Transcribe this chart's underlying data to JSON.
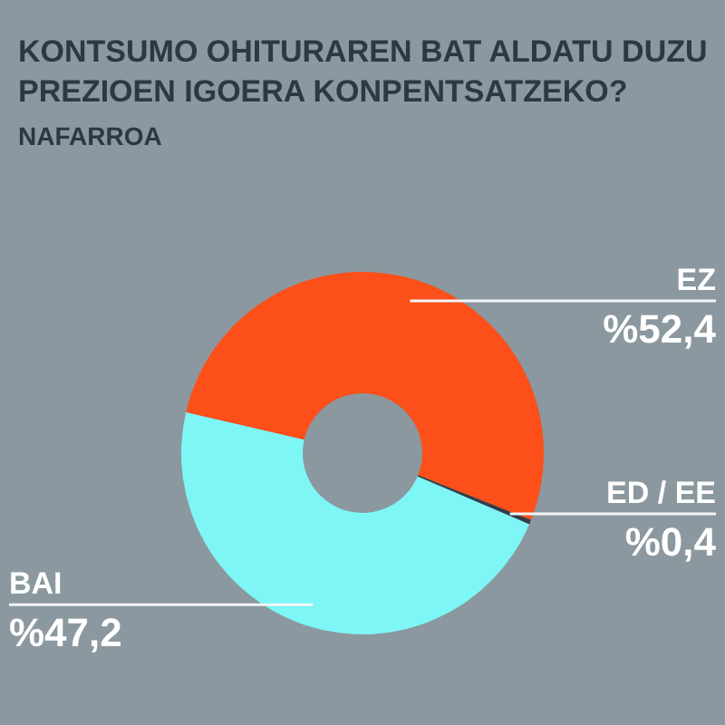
{
  "chart_data": {
    "type": "donut",
    "title": "KONTSUMO OHITURAREN BAT ALDATU DUZU PREZIOEN IGOERA KONPENTSATZEKO?",
    "subtitle": "NAFARROA",
    "categories": [
      "EZ",
      "ED / EE",
      "BAI"
    ],
    "values": [
      52.4,
      0.4,
      47.2
    ],
    "colors": [
      "#fc4f1a",
      "#343d46",
      "#7ef6f6"
    ],
    "value_labels": [
      "%52,4",
      "%0,4",
      "%47,2"
    ]
  }
}
